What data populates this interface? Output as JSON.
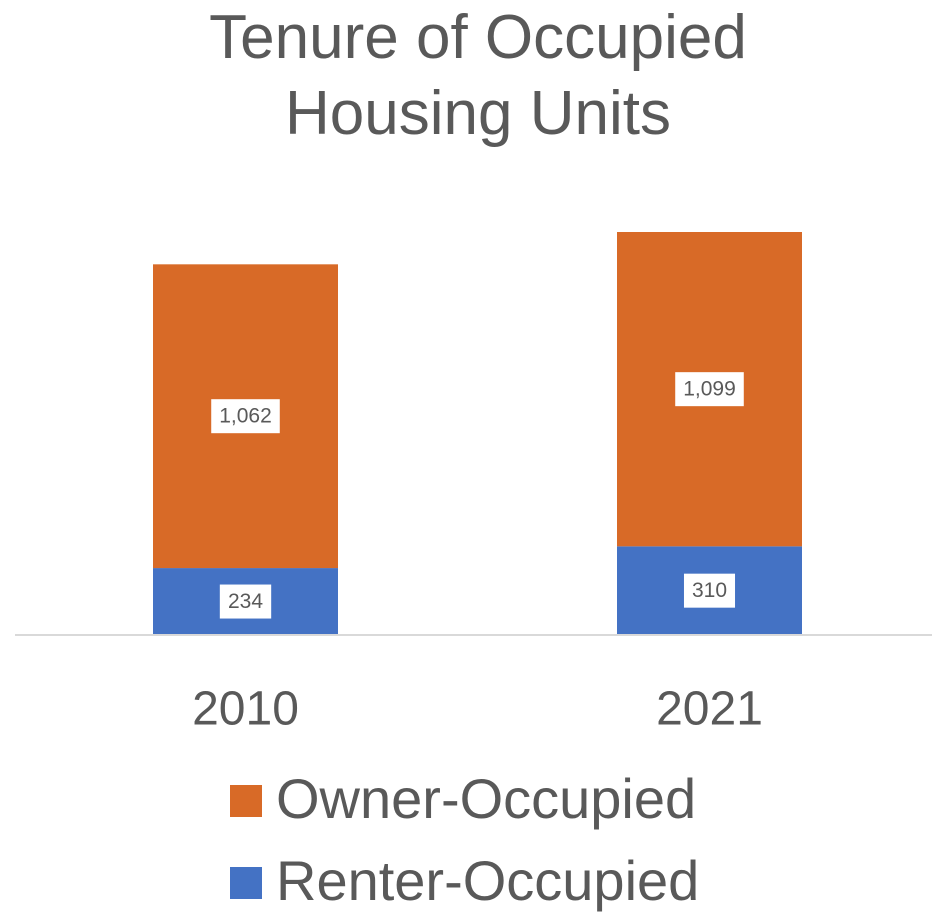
{
  "chart_data": {
    "type": "bar",
    "stacked": true,
    "title": "Tenure of Occupied Housing Units",
    "categories": [
      "2010",
      "2021"
    ],
    "series": [
      {
        "name": "Owner-Occupied",
        "color": "#d86a27",
        "values": [
          1062,
          1099
        ],
        "value_labels": [
          "1,062",
          "1,099"
        ]
      },
      {
        "name": "Renter-Occupied",
        "color": "#4472c4",
        "values": [
          234,
          310
        ]
      }
    ],
    "legend": "bottom"
  }
}
